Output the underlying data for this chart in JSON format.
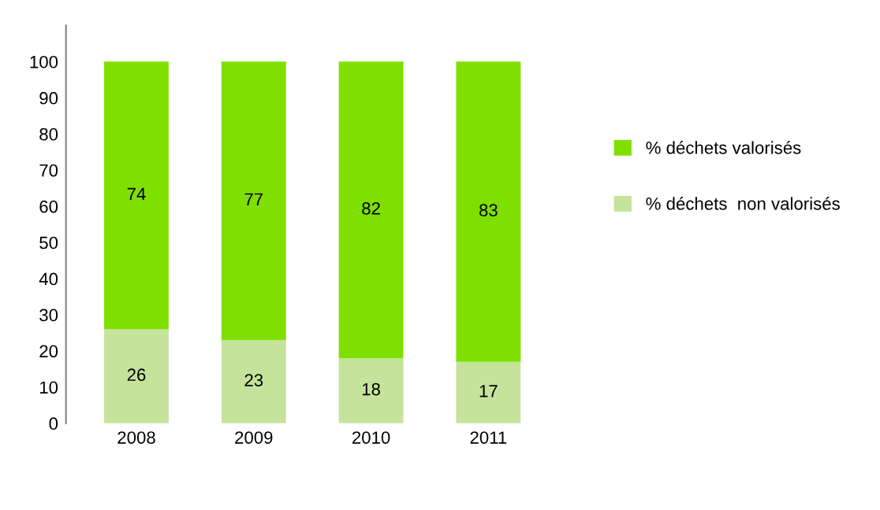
{
  "chart_data": {
    "type": "bar",
    "stacked": true,
    "categories": [
      "2008",
      "2009",
      "2010",
      "2011"
    ],
    "series": [
      {
        "name": "% déchets  non valorisés",
        "color": "#c5e39a",
        "values": [
          26,
          23,
          18,
          17
        ]
      },
      {
        "name": "% déchets valorisés",
        "color": "#7fe000",
        "values": [
          74,
          77,
          82,
          83
        ]
      }
    ],
    "ylim": [
      0,
      110
    ],
    "yticks": [
      0,
      10,
      20,
      30,
      40,
      50,
      60,
      70,
      80,
      90,
      100
    ],
    "data_labels": true,
    "legend": "right",
    "grid": false
  }
}
